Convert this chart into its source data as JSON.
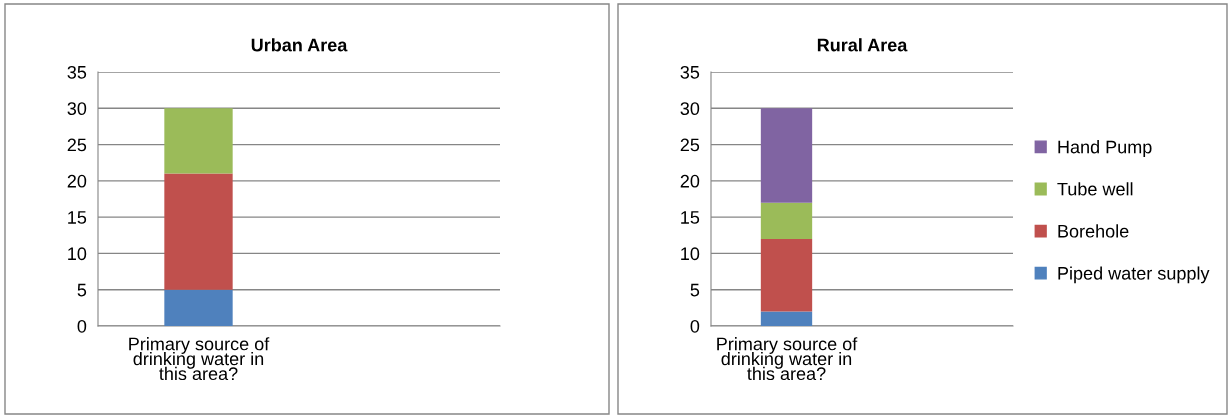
{
  "chart_data": [
    {
      "type": "bar",
      "title": "Urban Area",
      "stacked": true,
      "categories": [
        "Primary source of drinking water in this area?",
        null
      ],
      "ylim": [
        0,
        35
      ],
      "yticks": [
        0,
        5,
        10,
        15,
        20,
        25,
        30,
        35
      ],
      "grid": "y",
      "legend": false,
      "series": [
        {
          "color": "#4f81bd",
          "values": [
            5,
            null
          ]
        },
        {
          "color": "#c0504d",
          "values": [
            16,
            null
          ]
        },
        {
          "color": "#9bbb59",
          "values": [
            9,
            null
          ]
        }
      ]
    },
    {
      "type": "bar",
      "title": "Rural Area",
      "stacked": true,
      "categories": [
        "Primary source of drinking water in this area?",
        null
      ],
      "ylim": [
        0,
        35
      ],
      "yticks": [
        0,
        5,
        10,
        15,
        20,
        25,
        30,
        35
      ],
      "grid": "y",
      "legend": "right",
      "series": [
        {
          "name": "Piped water supply",
          "color": "#4f81bd",
          "values": [
            2,
            null
          ]
        },
        {
          "name": "Borehole",
          "color": "#c0504d",
          "values": [
            10,
            null
          ]
        },
        {
          "name": "Tube well",
          "color": "#9bbb59",
          "values": [
            5,
            null
          ]
        },
        {
          "name": "Hand Pump",
          "color": "#8064a2",
          "values": [
            13,
            null
          ]
        }
      ]
    }
  ]
}
